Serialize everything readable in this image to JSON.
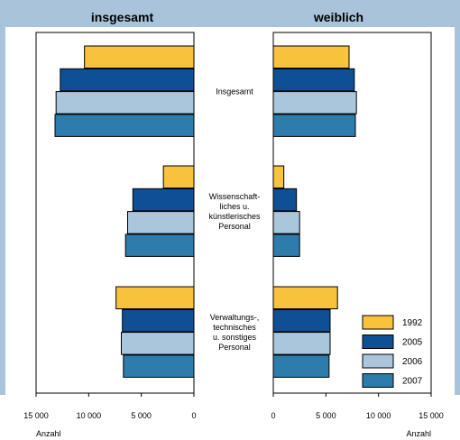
{
  "chart_data": {
    "type": "bar",
    "orientation": "horizontal-butterfly",
    "panels": [
      {
        "id": "left",
        "title": "insgesamt",
        "direction": "leftward",
        "xlim": [
          0,
          15000
        ],
        "ticks": [
          15000,
          10000,
          5000,
          0
        ],
        "tick_labels": [
          "15 000",
          "10 000",
          "5 000",
          "0"
        ],
        "unit_label": "Anzahl"
      },
      {
        "id": "right",
        "title": "weiblich",
        "direction": "rightward",
        "xlim": [
          0,
          15000
        ],
        "ticks": [
          0,
          5000,
          10000,
          15000
        ],
        "tick_labels": [
          "0",
          "5 000",
          "10 000",
          "15 000"
        ],
        "unit_label": "Anzahl"
      }
    ],
    "categories": [
      "Insgesamt",
      "Wissenschaft-\nliches u.\nkünstlerisches\nPersonal",
      "Verwaltungs-,\ntechnisches\nu. sonstiges\nPersonal"
    ],
    "series": [
      {
        "name": "1992",
        "color": "#F9C23C",
        "insgesamt": [
          10400,
          2900,
          7400
        ],
        "weiblich": [
          7200,
          1000,
          6100
        ]
      },
      {
        "name": "2005",
        "color": "#0F4F95",
        "insgesamt": [
          12700,
          5800,
          6800
        ],
        "weiblich": [
          7700,
          2200,
          5400
        ]
      },
      {
        "name": "2006",
        "color": "#A9C6DC",
        "insgesamt": [
          13100,
          6300,
          6900
        ],
        "weiblich": [
          7900,
          2500,
          5400
        ]
      },
      {
        "name": "2007",
        "color": "#2E7CAB",
        "insgesamt": [
          13200,
          6500,
          6700
        ],
        "weiblich": [
          7800,
          2500,
          5300
        ]
      }
    ],
    "legend_position": "bottom-right",
    "grid": false
  },
  "colors": {
    "header_band": "#A9C4DA",
    "frame": "#000000",
    "background": "#FFFFFF"
  }
}
